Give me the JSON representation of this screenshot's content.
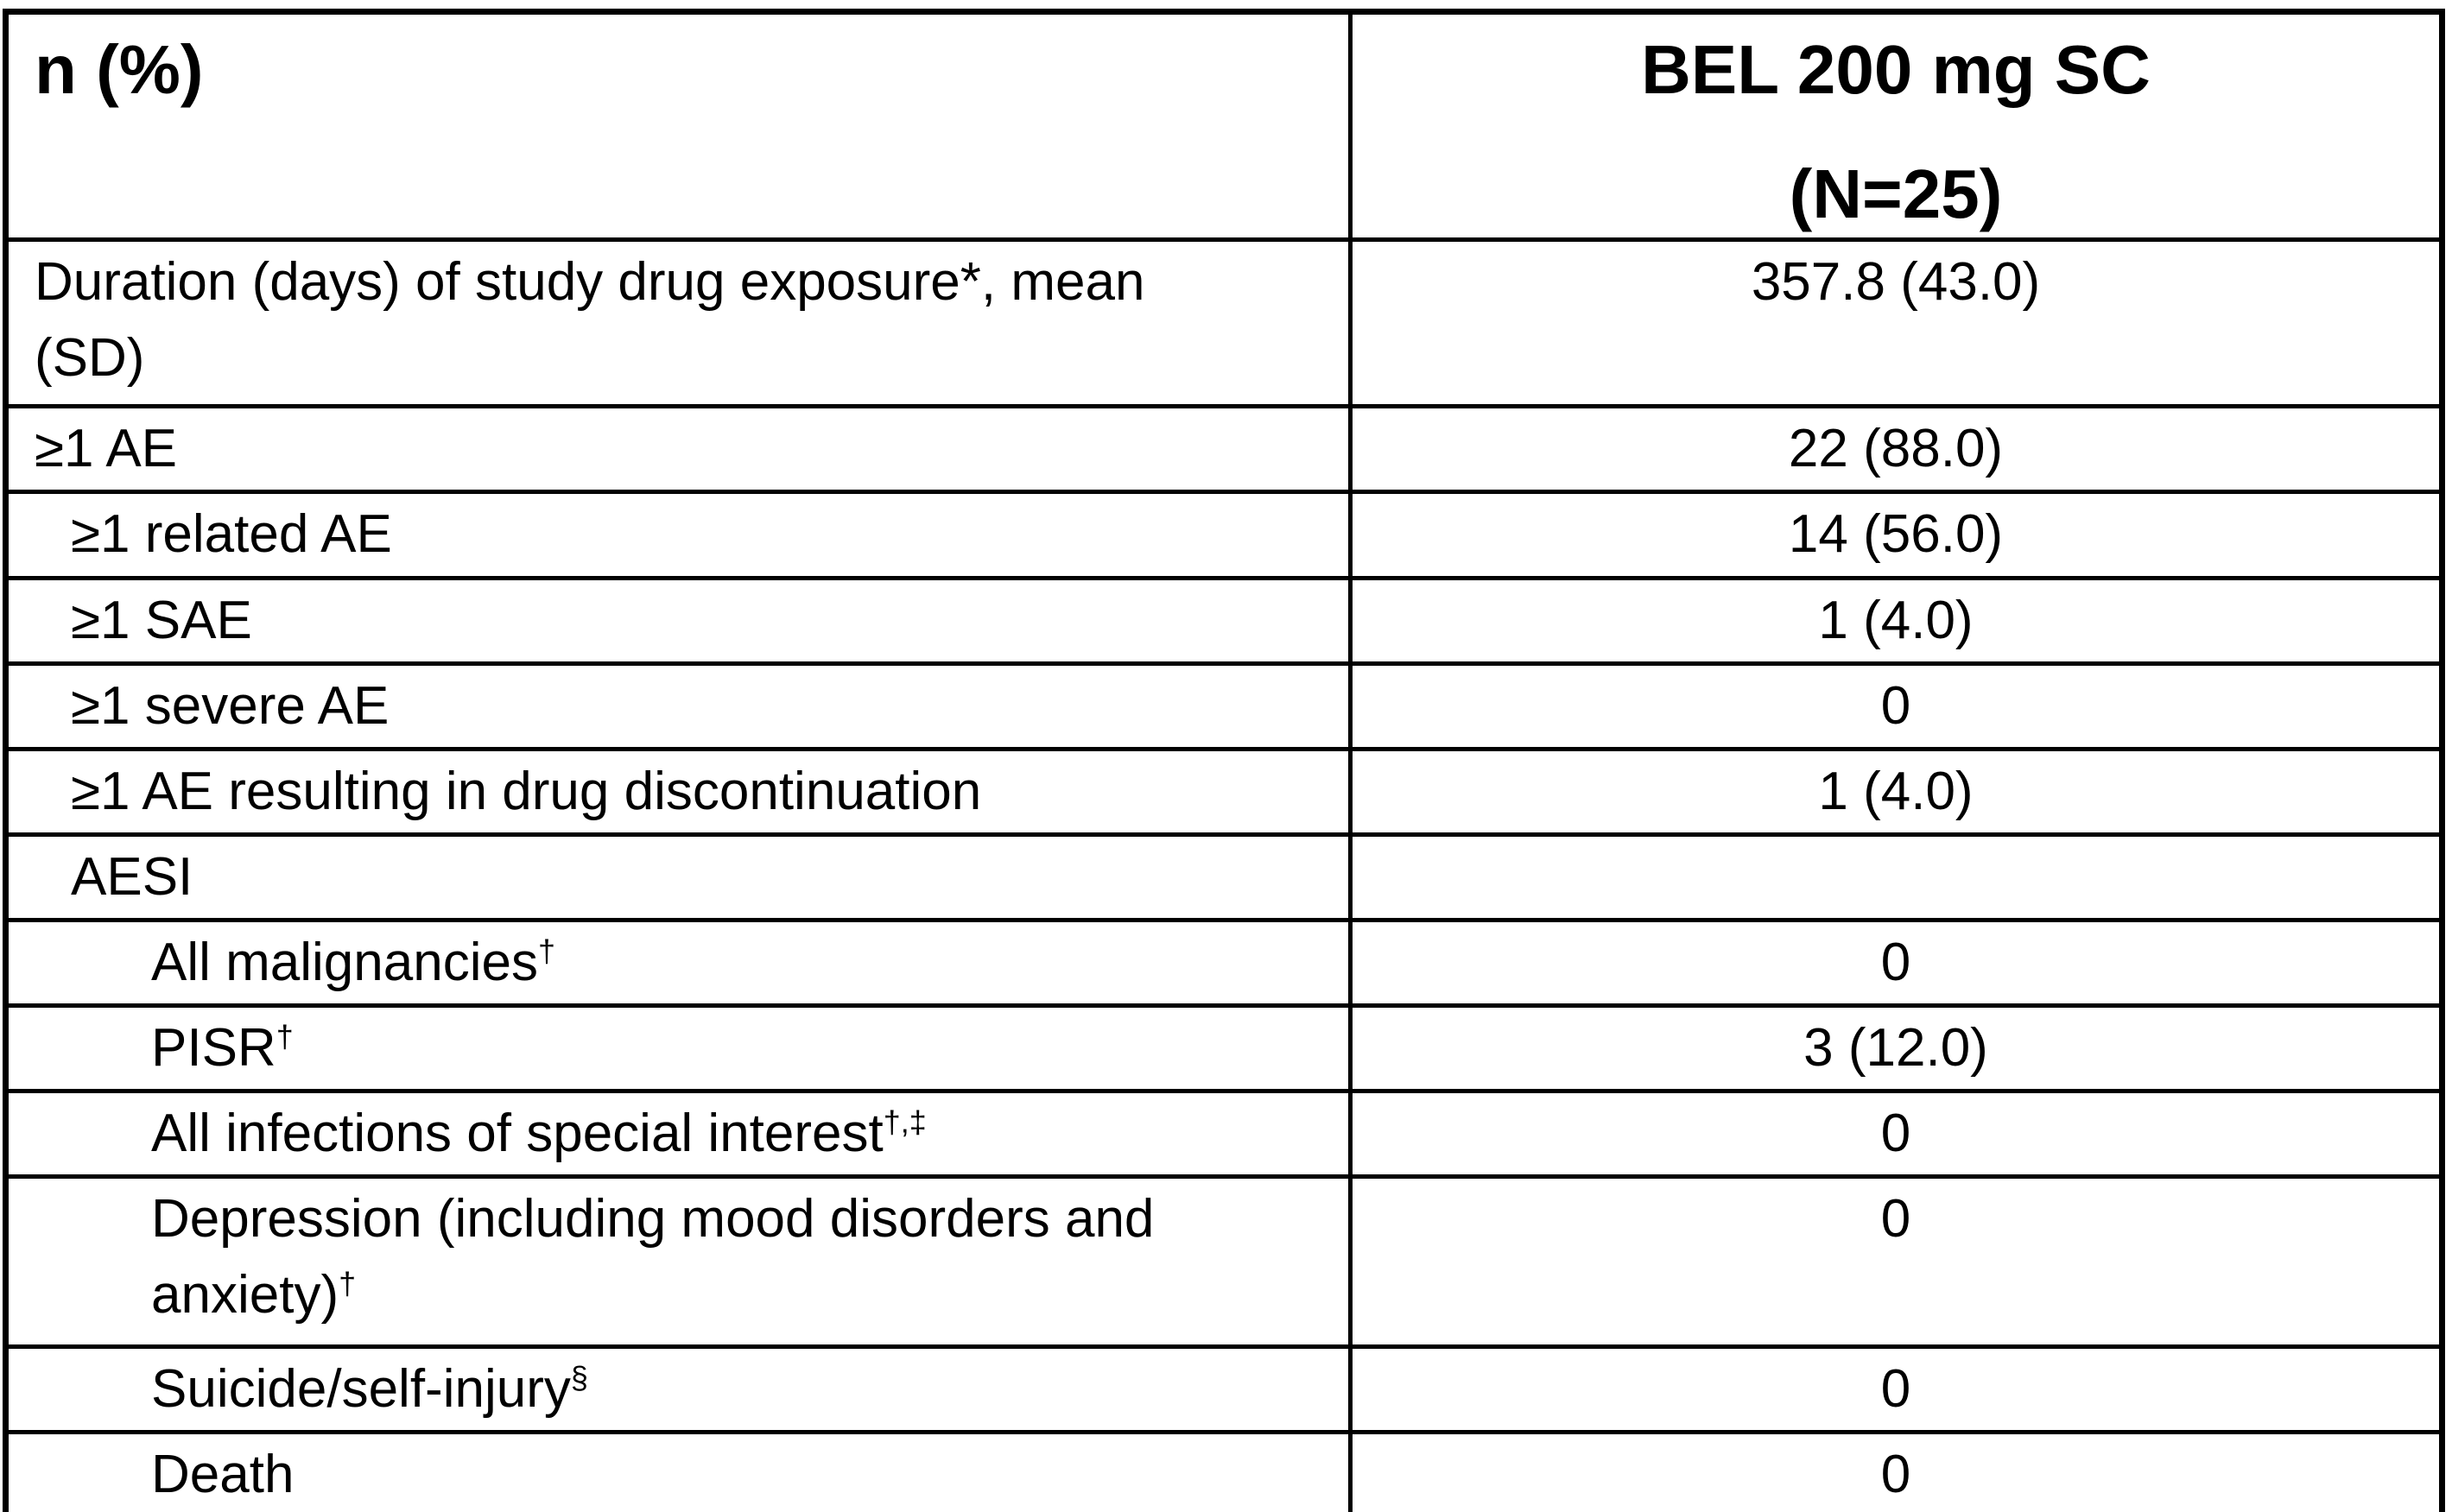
{
  "table": {
    "header": {
      "col1": "n (%)",
      "treatment_name": "BEL 200 mg SC",
      "treatment_n": "(N=25)"
    },
    "rows": [
      {
        "indent": 0,
        "label_lines": [
          {
            "text": "Duration (days) of study drug exposure*, mean"
          },
          {
            "text": "(SD)"
          }
        ],
        "value": "357.8 (43.0)"
      },
      {
        "indent": 0,
        "label_lines": [
          {
            "text": "≥1 AE"
          }
        ],
        "value": "22 (88.0)"
      },
      {
        "indent": 1,
        "label_lines": [
          {
            "text": "≥1 related AE"
          }
        ],
        "value": "14 (56.0)"
      },
      {
        "indent": 1,
        "label_lines": [
          {
            "text": "≥1 SAE"
          }
        ],
        "value": "1 (4.0)"
      },
      {
        "indent": 1,
        "label_lines": [
          {
            "text": "≥1 severe AE"
          }
        ],
        "value": "0"
      },
      {
        "indent": 1,
        "label_lines": [
          {
            "text": "≥1 AE resulting in drug discontinuation"
          }
        ],
        "value": "1 (4.0)"
      },
      {
        "indent": 1,
        "label_lines": [
          {
            "text": "AESI"
          }
        ],
        "value": ""
      },
      {
        "indent": 2,
        "label_lines": [
          {
            "text": "All malignancies",
            "sup": "†"
          }
        ],
        "value": "0"
      },
      {
        "indent": 2,
        "label_lines": [
          {
            "text": "PISR",
            "sup": "†"
          }
        ],
        "value": "3 (12.0)"
      },
      {
        "indent": 2,
        "label_lines": [
          {
            "text": "All infections of special interest",
            "sup": "†,‡"
          }
        ],
        "value": "0"
      },
      {
        "indent": 2,
        "label_lines": [
          {
            "text": "Depression (including mood disorders and"
          },
          {
            "text": "anxiety)",
            "sup": "†"
          }
        ],
        "value": "0"
      },
      {
        "indent": 2,
        "label_lines": [
          {
            "text": "Suicide/self-injury",
            "sup": "§"
          }
        ],
        "value": "0"
      },
      {
        "indent": 2,
        "label_lines": [
          {
            "text": "Death"
          }
        ],
        "value": "0"
      }
    ]
  },
  "colors": {
    "border": "#000000",
    "background": "#ffffff",
    "text": "#000000"
  }
}
